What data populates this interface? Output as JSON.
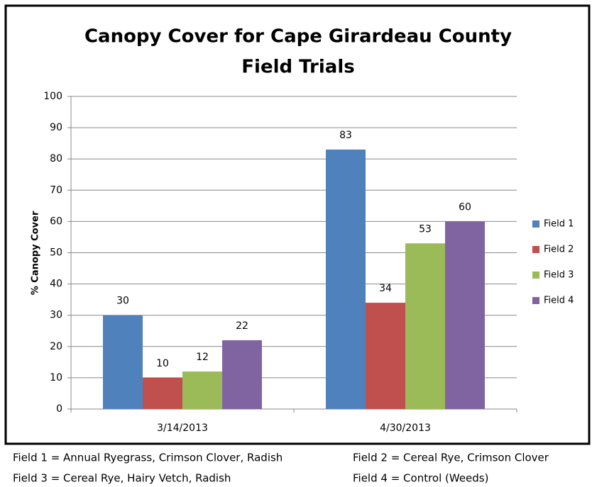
{
  "chart_data": {
    "type": "bar",
    "title": [
      "Canopy Cover for Cape Girardeau County",
      "Field Trials"
    ],
    "ylabel": "% Canopy Cover",
    "categories": [
      "3/14/2013",
      "4/30/2013"
    ],
    "series": [
      {
        "name": "Field 1",
        "color": "#4f81bd",
        "values": [
          30,
          83
        ]
      },
      {
        "name": "Field 2",
        "color": "#c0504d",
        "values": [
          10,
          34
        ]
      },
      {
        "name": "Field 3",
        "color": "#9bbb59",
        "values": [
          12,
          53
        ]
      },
      {
        "name": "Field 4",
        "color": "#8064a2",
        "values": [
          22,
          60
        ]
      }
    ],
    "ylim": [
      0,
      100
    ],
    "yticks": [
      0,
      10,
      20,
      30,
      40,
      50,
      60,
      70,
      80,
      90,
      100
    ],
    "grid": true,
    "legend": "right",
    "data_labels": true
  },
  "notes": [
    "Field 1 = Annual Ryegrass, Crimson Clover, Radish",
    "Field 2 = Cereal Rye, Crimson Clover",
    "Field 3 = Cereal Rye, Hairy Vetch, Radish",
    "Field 4 = Control (Weeds)"
  ]
}
